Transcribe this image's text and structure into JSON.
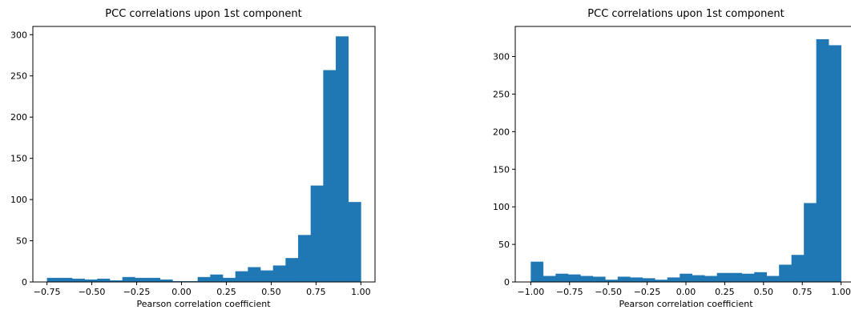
{
  "chart_data": [
    {
      "type": "bar",
      "title": "PCC correlations upon 1st component",
      "xlabel": "Pearson correlation coefficient",
      "ylabel": "",
      "xlim": [
        -0.75,
        1.0
      ],
      "ylim": [
        0,
        310
      ],
      "xticks": [
        -0.75,
        -0.5,
        -0.25,
        0.0,
        0.25,
        0.5,
        0.75,
        1.0
      ],
      "xtick_labels": [
        "−0.75",
        "−0.50",
        "−0.25",
        "0.00",
        "0.25",
        "0.50",
        "0.75",
        "1.00"
      ],
      "yticks": [
        0,
        50,
        100,
        150,
        200,
        250,
        300
      ],
      "ytick_labels": [
        "0",
        "50",
        "100",
        "150",
        "200",
        "250",
        "300"
      ],
      "bin_edges": [
        -0.75,
        -0.68,
        -0.61,
        -0.54,
        -0.47,
        -0.4,
        -0.33,
        -0.26,
        -0.19,
        -0.12,
        -0.05,
        0.02,
        0.09,
        0.16,
        0.23,
        0.3,
        0.37,
        0.44,
        0.51,
        0.58,
        0.65,
        0.72,
        0.79,
        0.86,
        0.93,
        1.0
      ],
      "values": [
        5,
        5,
        4,
        3,
        4,
        2,
        6,
        5,
        5,
        3,
        1,
        1,
        6,
        9,
        5,
        13,
        18,
        14,
        20,
        29,
        57,
        117,
        257,
        298,
        97
      ],
      "grid": false,
      "bar_color": "#1f77b4"
    },
    {
      "type": "bar",
      "title": "PCC correlations upon 1st component",
      "xlabel": "Pearson correlation coefficient",
      "ylabel": "",
      "xlim": [
        -1.0,
        1.0
      ],
      "ylim": [
        0,
        340
      ],
      "xticks": [
        -1.0,
        -0.75,
        -0.5,
        -0.25,
        0.0,
        0.25,
        0.5,
        0.75,
        1.0
      ],
      "xtick_labels": [
        "−1.00",
        "−0.75",
        "−0.50",
        "−0.25",
        "0.00",
        "0.25",
        "0.50",
        "0.75",
        "1.00"
      ],
      "yticks": [
        0,
        50,
        100,
        150,
        200,
        250,
        300
      ],
      "ytick_labels": [
        "0",
        "50",
        "100",
        "150",
        "200",
        "250",
        "300"
      ],
      "bin_edges": [
        -1.0,
        -0.92,
        -0.84,
        -0.76,
        -0.68,
        -0.6,
        -0.52,
        -0.44,
        -0.36,
        -0.28,
        -0.2,
        -0.12,
        -0.04,
        0.04,
        0.12,
        0.2,
        0.28,
        0.36,
        0.44,
        0.52,
        0.6,
        0.68,
        0.76,
        0.84,
        0.92,
        1.0
      ],
      "values": [
        27,
        8,
        11,
        10,
        8,
        7,
        3,
        7,
        6,
        5,
        3,
        6,
        11,
        9,
        8,
        12,
        12,
        11,
        13,
        8,
        23,
        36,
        105,
        323,
        315
      ],
      "grid": false,
      "bar_color": "#1f77b4"
    }
  ]
}
